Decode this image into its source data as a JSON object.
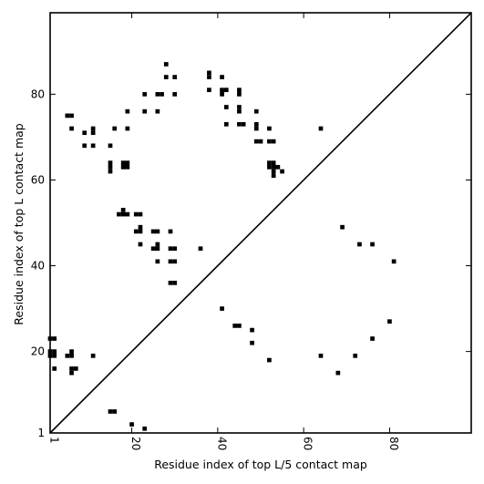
{
  "chart_data": {
    "type": "scatter",
    "title": "",
    "xlabel": "Residue index of top L/5 contact map",
    "ylabel": "Residue index of top L contact map",
    "xlim": [
      1,
      99
    ],
    "ylim": [
      1,
      99
    ],
    "xticks": [
      1,
      20,
      40,
      60,
      80
    ],
    "yticks": [
      1,
      20,
      40,
      60,
      80
    ],
    "grid": false,
    "legend": "none",
    "marker_color": "#000000",
    "diagonal_line": {
      "from": [
        1,
        1
      ],
      "to": [
        99,
        99
      ]
    },
    "series": [
      {
        "name": "",
        "points": [
          [
            28,
            87
          ],
          [
            28,
            84
          ],
          [
            30,
            84
          ],
          [
            38,
            85
          ],
          [
            38,
            84
          ],
          [
            41,
            84
          ],
          [
            23,
            80
          ],
          [
            26,
            80
          ],
          [
            27,
            80
          ],
          [
            30,
            80
          ],
          [
            38,
            81
          ],
          [
            41,
            81
          ],
          [
            41,
            80
          ],
          [
            42,
            81
          ],
          [
            45,
            81
          ],
          [
            45,
            80
          ],
          [
            5,
            75
          ],
          [
            6,
            75
          ],
          [
            42,
            77
          ],
          [
            45,
            77
          ],
          [
            45,
            76
          ],
          [
            19,
            76
          ],
          [
            23,
            76
          ],
          [
            26,
            76
          ],
          [
            49,
            76
          ],
          [
            42,
            73
          ],
          [
            45,
            73
          ],
          [
            46,
            73
          ],
          [
            49,
            73
          ],
          [
            49,
            72
          ],
          [
            6,
            72
          ],
          [
            9,
            71
          ],
          [
            11,
            72
          ],
          [
            11,
            71
          ],
          [
            16,
            72
          ],
          [
            19,
            72
          ],
          [
            52,
            72
          ],
          [
            64,
            72
          ],
          [
            49,
            69
          ],
          [
            50,
            69
          ],
          [
            52,
            69
          ],
          [
            53,
            69
          ],
          [
            9,
            68
          ],
          [
            11,
            68
          ],
          [
            15,
            68
          ],
          [
            52,
            64
          ],
          [
            53,
            64
          ],
          [
            52,
            63
          ],
          [
            53,
            63
          ],
          [
            54,
            63
          ],
          [
            53,
            62
          ],
          [
            53,
            61
          ],
          [
            55,
            62
          ],
          [
            15,
            64
          ],
          [
            18,
            64
          ],
          [
            19,
            64
          ],
          [
            15,
            63
          ],
          [
            18,
            63
          ],
          [
            19,
            63
          ],
          [
            15,
            62
          ],
          [
            17,
            52
          ],
          [
            18,
            52
          ],
          [
            19,
            52
          ],
          [
            18,
            53
          ],
          [
            21,
            52
          ],
          [
            22,
            52
          ],
          [
            21,
            48
          ],
          [
            22,
            48
          ],
          [
            22,
            49
          ],
          [
            25,
            48
          ],
          [
            26,
            48
          ],
          [
            29,
            48
          ],
          [
            22,
            45
          ],
          [
            25,
            44
          ],
          [
            26,
            44
          ],
          [
            26,
            45
          ],
          [
            29,
            44
          ],
          [
            30,
            44
          ],
          [
            36,
            44
          ],
          [
            26,
            41
          ],
          [
            29,
            41
          ],
          [
            30,
            41
          ],
          [
            29,
            36
          ],
          [
            30,
            36
          ],
          [
            69,
            49
          ],
          [
            73,
            45
          ],
          [
            76,
            45
          ],
          [
            81,
            41
          ],
          [
            41,
            30
          ],
          [
            80,
            27
          ],
          [
            44,
            26
          ],
          [
            45,
            26
          ],
          [
            48,
            25
          ],
          [
            76,
            23
          ],
          [
            48,
            22
          ],
          [
            1,
            23
          ],
          [
            2,
            23
          ],
          [
            1,
            20
          ],
          [
            2,
            20
          ],
          [
            5,
            19
          ],
          [
            6,
            20
          ],
          [
            6,
            19
          ],
          [
            1,
            19
          ],
          [
            2,
            19
          ],
          [
            11,
            19
          ],
          [
            64,
            19
          ],
          [
            72,
            19
          ],
          [
            52,
            18
          ],
          [
            68,
            15
          ],
          [
            2,
            16
          ],
          [
            6,
            16
          ],
          [
            7,
            16
          ],
          [
            6,
            15
          ],
          [
            15,
            6
          ],
          [
            16,
            6
          ],
          [
            20,
            3
          ],
          [
            23,
            2
          ]
        ]
      }
    ]
  }
}
